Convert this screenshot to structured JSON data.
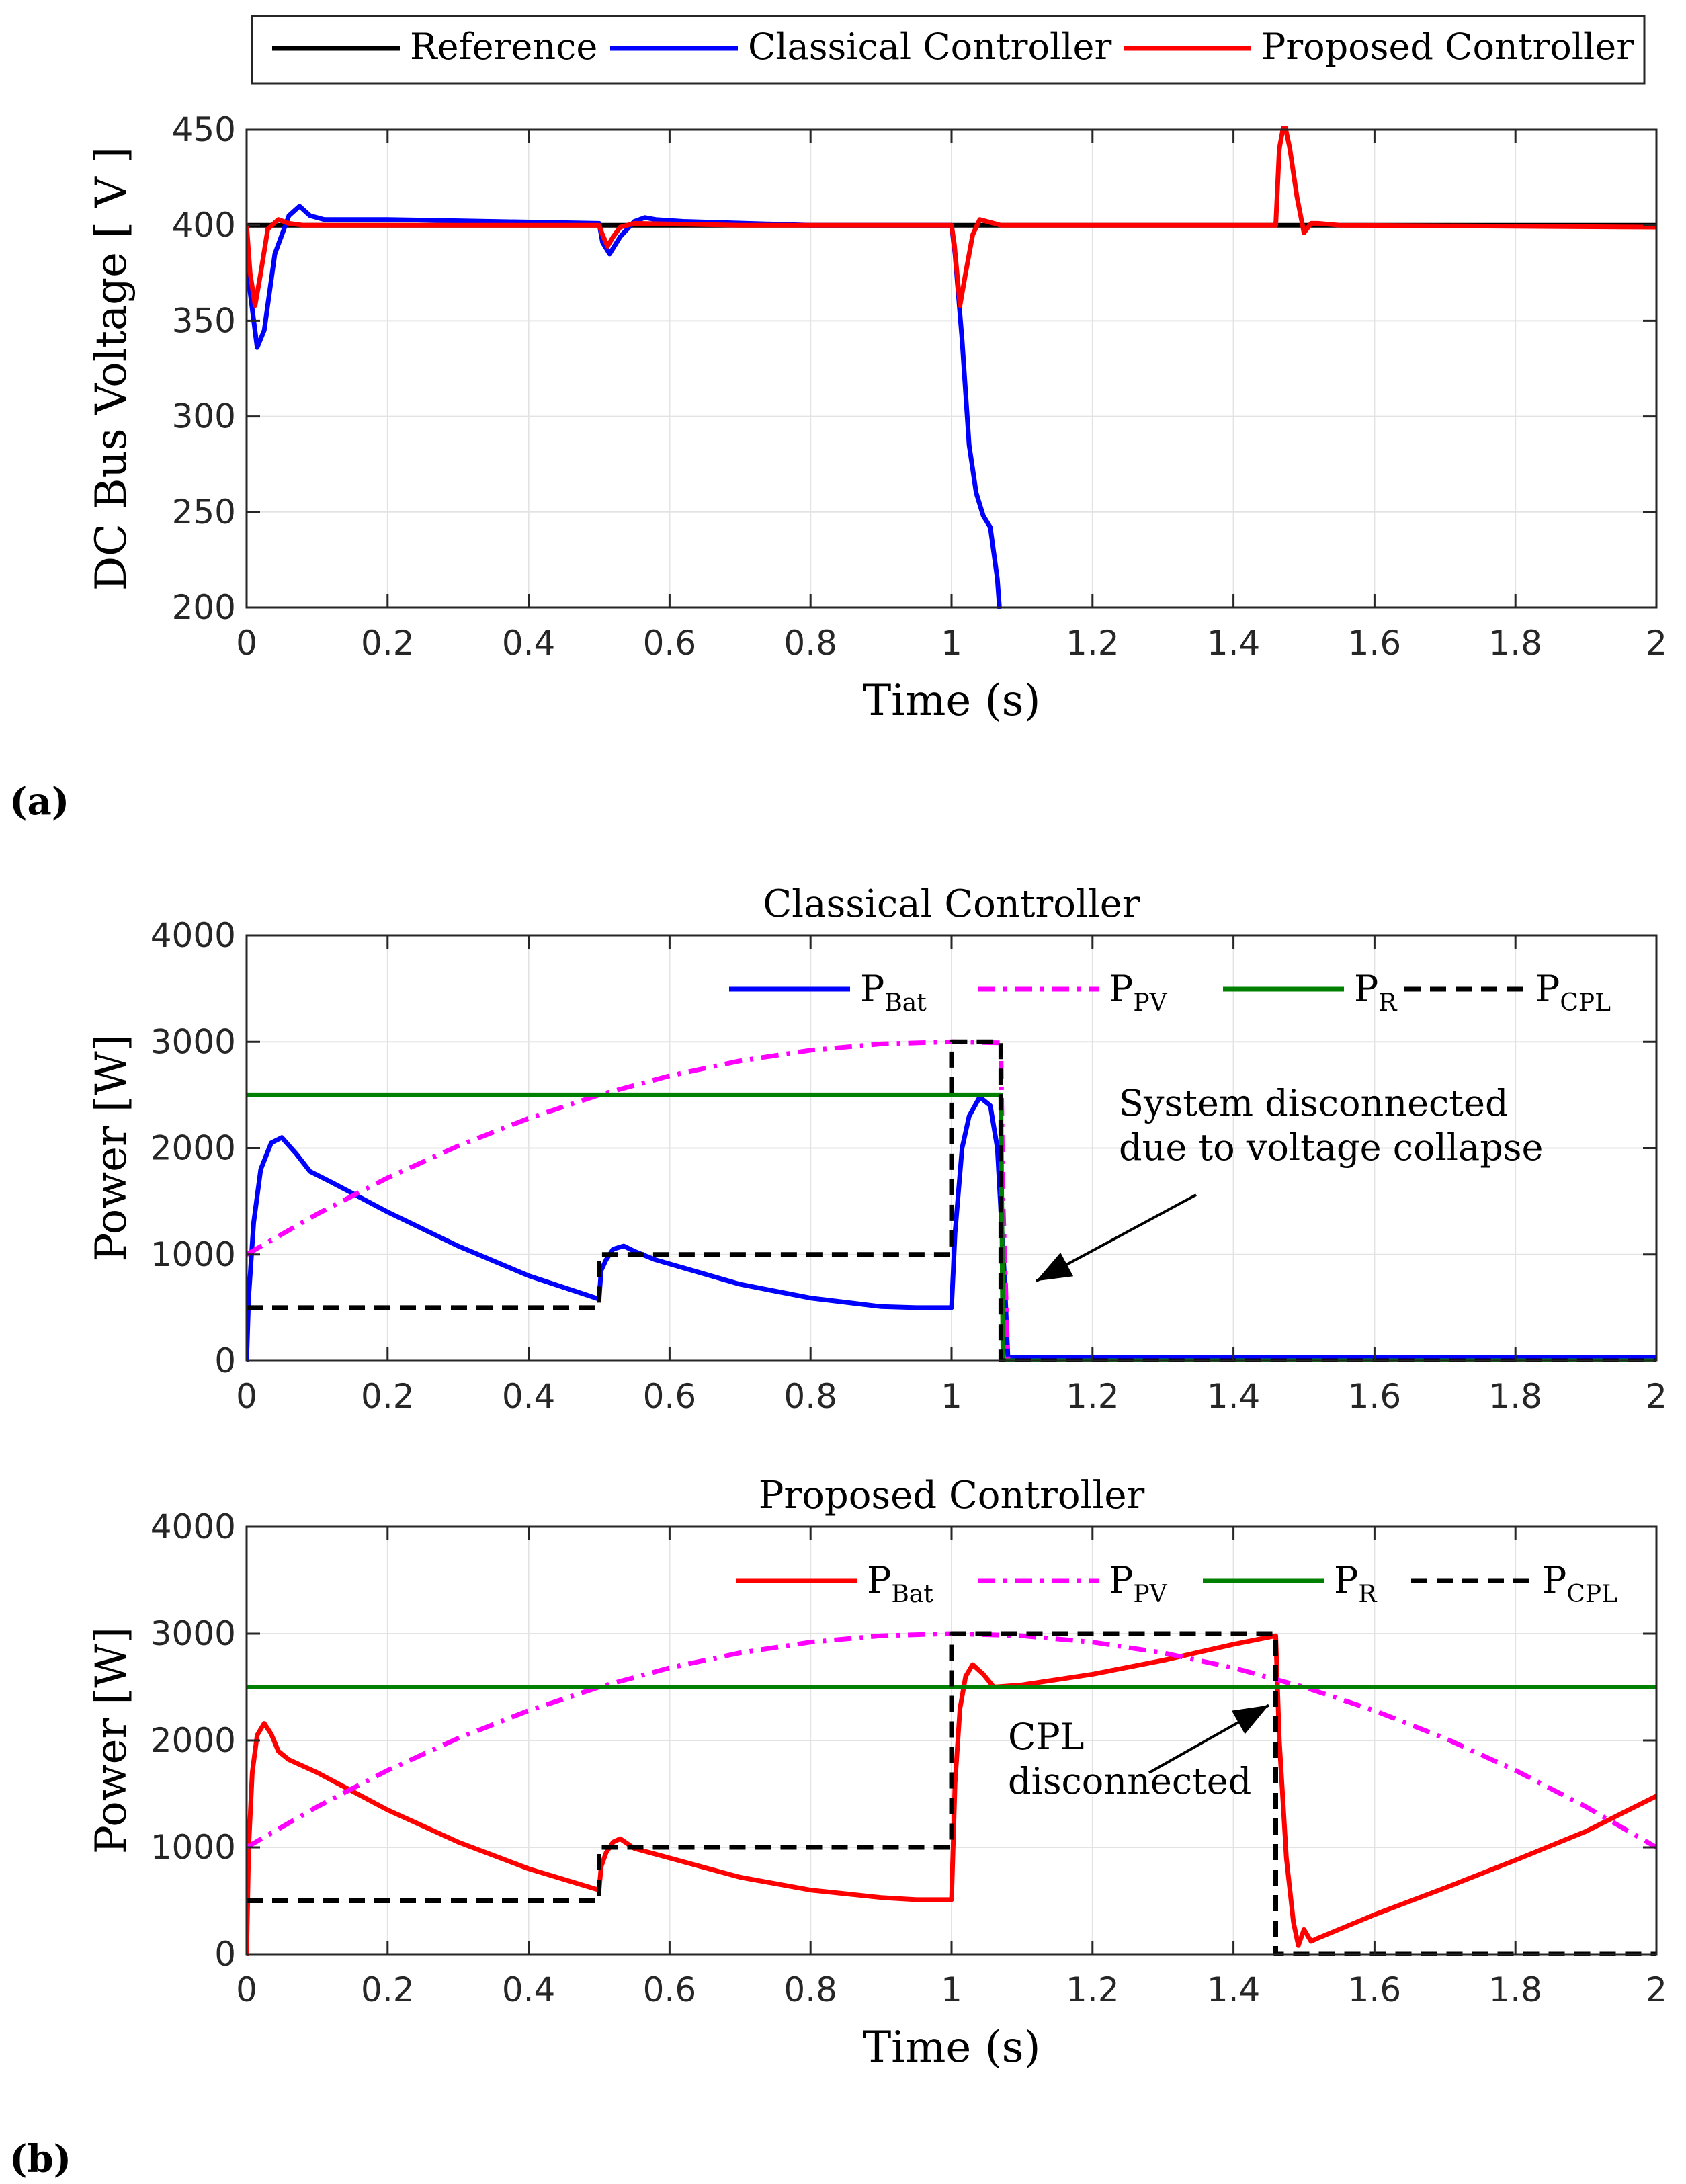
{
  "panels": {
    "a": {
      "label": "(a)"
    },
    "b": {
      "label": "(b)"
    }
  },
  "chart_data": [
    {
      "id": "voltage",
      "type": "line",
      "title": "",
      "xlabel": "Time (s)",
      "ylabel": "DC Bus Voltage [ V ]",
      "xlim": [
        0,
        2
      ],
      "ylim": [
        200,
        450
      ],
      "xticks": [
        0,
        0.2,
        0.4,
        0.6,
        0.8,
        1,
        1.2,
        1.4,
        1.6,
        1.8,
        2
      ],
      "xtick_labels": [
        "0",
        "0.2",
        "0.4",
        "0.6",
        "0.8",
        "1",
        "1.2",
        "1.4",
        "1.6",
        "1.8",
        "2"
      ],
      "yticks": [
        200,
        250,
        300,
        350,
        400,
        450
      ],
      "ytick_labels": [
        "200",
        "250",
        "300",
        "350",
        "400",
        "450"
      ],
      "grid": true,
      "legend_position": "top-outside",
      "legend": [
        "Reference",
        "Classical Controller",
        "Proposed Controller"
      ],
      "series": [
        {
          "name": "Reference",
          "color": "#000000",
          "style": "solid",
          "x": [
            0,
            2
          ],
          "y": [
            400,
            400
          ]
        },
        {
          "name": "Classical Controller",
          "color": "#0000ff",
          "style": "solid",
          "x": [
            0,
            0.005,
            0.015,
            0.025,
            0.04,
            0.06,
            0.075,
            0.09,
            0.11,
            0.2,
            0.5,
            0.505,
            0.515,
            0.53,
            0.55,
            0.565,
            0.58,
            0.62,
            0.8,
            1.0,
            1.005,
            1.015,
            1.025,
            1.035,
            1.045,
            1.055,
            1.065,
            1.068
          ],
          "y": [
            400,
            365,
            336,
            345,
            385,
            405,
            410,
            405,
            403,
            403,
            401,
            391,
            385,
            394,
            402,
            404,
            403,
            402,
            400,
            400,
            385,
            340,
            285,
            260,
            248,
            242,
            215,
            200
          ]
        },
        {
          "name": "Proposed Controller",
          "color": "#ff0000",
          "style": "solid",
          "x": [
            0,
            0.005,
            0.012,
            0.02,
            0.03,
            0.045,
            0.06,
            0.08,
            0.2,
            0.5,
            0.505,
            0.512,
            0.52,
            0.53,
            0.55,
            0.7,
            1.0,
            1.004,
            1.012,
            1.02,
            1.03,
            1.04,
            1.05,
            1.07,
            1.1,
            1.3,
            1.46,
            1.465,
            1.472,
            1.48,
            1.49,
            1.5,
            1.51,
            1.52,
            1.55,
            2.0
          ],
          "y": [
            400,
            375,
            358,
            375,
            398,
            403,
            401,
            400,
            400,
            400,
            395,
            389,
            394,
            399,
            401,
            400,
            400,
            390,
            358,
            375,
            395,
            403,
            402,
            400,
            400,
            400,
            400,
            440,
            454,
            440,
            415,
            396,
            401,
            401,
            400,
            399
          ]
        }
      ]
    },
    {
      "id": "power-classical",
      "type": "line",
      "title": "Classical Controller",
      "xlabel": "",
      "ylabel": "Power [W]",
      "xlim": [
        0,
        2
      ],
      "ylim": [
        0,
        4000
      ],
      "xticks": [
        0,
        0.2,
        0.4,
        0.6,
        0.8,
        1,
        1.2,
        1.4,
        1.6,
        1.8,
        2
      ],
      "xtick_labels": [
        "0",
        "0.2",
        "0.4",
        "0.6",
        "0.8",
        "1",
        "1.2",
        "1.4",
        "1.6",
        "1.8",
        "2"
      ],
      "yticks": [
        0,
        1000,
        2000,
        3000,
        4000
      ],
      "ytick_labels": [
        "0",
        "1000",
        "2000",
        "3000",
        "4000"
      ],
      "grid": true,
      "legend_position": "top-right",
      "legend": [
        {
          "base": "P",
          "sub": "Bat"
        },
        {
          "base": "P",
          "sub": "PV"
        },
        {
          "base": "P",
          "sub": "R"
        },
        {
          "base": "P",
          "sub": "CPL"
        }
      ],
      "annotations": [
        {
          "text": [
            "System disconnected",
            "due to voltage collapse"
          ],
          "arrow_to": [
            1.12,
            750
          ]
        }
      ],
      "series": [
        {
          "name": "P_Bat",
          "color": "#0000ff",
          "style": "solid",
          "x": [
            0,
            0.003,
            0.01,
            0.02,
            0.035,
            0.05,
            0.07,
            0.09,
            0.12,
            0.2,
            0.3,
            0.4,
            0.5,
            0.503,
            0.51,
            0.52,
            0.535,
            0.55,
            0.58,
            0.7,
            0.8,
            0.9,
            0.95,
            1.0,
            1.005,
            1.015,
            1.025,
            1.04,
            1.055,
            1.065,
            1.075,
            1.08,
            1.2,
            1.4,
            1.6,
            1.8,
            2.0
          ],
          "y": [
            0,
            600,
            1300,
            1800,
            2050,
            2100,
            1950,
            1780,
            1680,
            1400,
            1080,
            800,
            580,
            850,
            950,
            1050,
            1080,
            1030,
            950,
            720,
            590,
            510,
            500,
            500,
            1200,
            2000,
            2300,
            2480,
            2400,
            2000,
            800,
            30,
            30,
            30,
            30,
            30,
            30
          ]
        },
        {
          "name": "P_PV",
          "color": "#ff00ff",
          "style": "dashdot",
          "x": [
            0,
            0.1,
            0.2,
            0.3,
            0.4,
            0.5,
            0.6,
            0.7,
            0.8,
            0.9,
            1.0,
            1.07,
            1.073,
            1.08,
            2.0
          ],
          "y": [
            1000,
            1380,
            1720,
            2020,
            2280,
            2500,
            2680,
            2820,
            2920,
            2980,
            3000,
            2990,
            1500,
            0,
            0
          ]
        },
        {
          "name": "P_R",
          "color": "#008000",
          "style": "solid",
          "x": [
            0,
            1.07,
            1.073,
            2.0
          ],
          "y": [
            2500,
            2500,
            0,
            0
          ]
        },
        {
          "name": "P_CPL",
          "color": "#000000",
          "style": "dashed",
          "x": [
            0,
            0.5,
            0.5,
            1.0,
            1.0,
            1.07,
            1.07,
            2.0
          ],
          "y": [
            500,
            500,
            1000,
            1000,
            3000,
            3000,
            0,
            0
          ]
        }
      ]
    },
    {
      "id": "power-proposed",
      "type": "line",
      "title": "Proposed Controller",
      "xlabel": "Time (s)",
      "ylabel": "Power [W]",
      "xlim": [
        0,
        2
      ],
      "ylim": [
        0,
        4000
      ],
      "xticks": [
        0,
        0.2,
        0.4,
        0.6,
        0.8,
        1,
        1.2,
        1.4,
        1.6,
        1.8,
        2
      ],
      "xtick_labels": [
        "0",
        "0.2",
        "0.4",
        "0.6",
        "0.8",
        "1",
        "1.2",
        "1.4",
        "1.6",
        "1.8",
        "2"
      ],
      "yticks": [
        0,
        1000,
        2000,
        3000,
        4000
      ],
      "ytick_labels": [
        "0",
        "1000",
        "2000",
        "3000",
        "4000"
      ],
      "grid": true,
      "legend_position": "top-right",
      "legend": [
        {
          "base": "P",
          "sub": "Bat"
        },
        {
          "base": "P",
          "sub": "PV"
        },
        {
          "base": "P",
          "sub": "R"
        },
        {
          "base": "P",
          "sub": "CPL"
        }
      ],
      "annotations": [
        {
          "text": [
            "CPL",
            "disconnected"
          ],
          "arrow_to": [
            1.45,
            2330
          ]
        }
      ],
      "series": [
        {
          "name": "P_Bat",
          "color": "#ff0000",
          "style": "solid",
          "x": [
            0,
            0.003,
            0.008,
            0.015,
            0.025,
            0.035,
            0.045,
            0.06,
            0.1,
            0.2,
            0.3,
            0.4,
            0.5,
            0.503,
            0.51,
            0.52,
            0.53,
            0.55,
            0.6,
            0.7,
            0.8,
            0.9,
            0.95,
            1.0,
            1.005,
            1.012,
            1.02,
            1.03,
            1.045,
            1.06,
            1.1,
            1.2,
            1.3,
            1.4,
            1.46,
            1.465,
            1.475,
            1.485,
            1.492,
            1.5,
            1.51,
            1.52,
            1.6,
            1.7,
            1.8,
            1.9,
            2.0
          ],
          "y": [
            0,
            1000,
            1700,
            2050,
            2160,
            2060,
            1900,
            1820,
            1700,
            1350,
            1050,
            800,
            600,
            820,
            950,
            1050,
            1080,
            990,
            900,
            720,
            600,
            530,
            510,
            510,
            1600,
            2300,
            2600,
            2710,
            2620,
            2500,
            2520,
            2620,
            2750,
            2900,
            2980,
            2000,
            900,
            300,
            80,
            230,
            120,
            150,
            370,
            620,
            880,
            1150,
            1480
          ]
        },
        {
          "name": "P_PV",
          "color": "#ff00ff",
          "style": "dashdot",
          "x": [
            0,
            0.1,
            0.2,
            0.3,
            0.4,
            0.5,
            0.6,
            0.7,
            0.8,
            0.9,
            1.0,
            1.1,
            1.2,
            1.3,
            1.4,
            1.5,
            1.6,
            1.7,
            1.8,
            1.9,
            2.0
          ],
          "y": [
            1000,
            1380,
            1720,
            2020,
            2280,
            2500,
            2680,
            2820,
            2920,
            2980,
            3000,
            2980,
            2920,
            2820,
            2680,
            2500,
            2280,
            2020,
            1720,
            1380,
            1000
          ]
        },
        {
          "name": "P_R",
          "color": "#008000",
          "style": "solid",
          "x": [
            0,
            2.0
          ],
          "y": [
            2500,
            2500
          ]
        },
        {
          "name": "P_CPL",
          "color": "#000000",
          "style": "dashed",
          "x": [
            0,
            0.5,
            0.5,
            1.0,
            1.0,
            1.46,
            1.46,
            2.0
          ],
          "y": [
            500,
            500,
            1000,
            1000,
            3000,
            3000,
            0,
            0
          ]
        }
      ]
    }
  ]
}
